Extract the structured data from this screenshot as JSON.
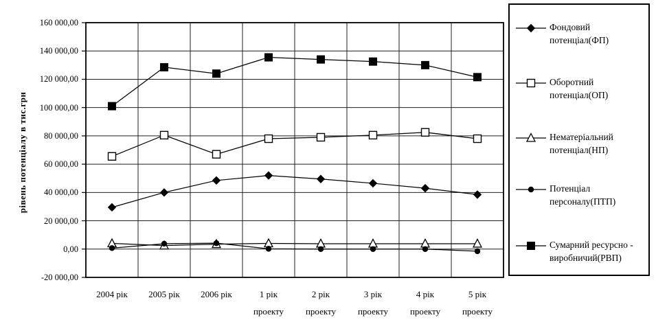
{
  "figure": {
    "background": "#ffffff",
    "line_color": "#000000",
    "grid_color": "#1f1f1f"
  },
  "chart_data": {
    "type": "line",
    "title": "",
    "xlabel": "",
    "ylabel": "рівень потенціалу в тис.грн",
    "ylim": [
      -20000,
      160000
    ],
    "y_tick_step": 20000,
    "grid": true,
    "legend_position": "right",
    "y_ticks": [
      {
        "value": 160000,
        "label": "160 000,00"
      },
      {
        "value": 140000,
        "label": "140 000,00"
      },
      {
        "value": 120000,
        "label": "120 000,00"
      },
      {
        "value": 100000,
        "label": "100 000,00"
      },
      {
        "value": 80000,
        "label": "80 000,00"
      },
      {
        "value": 60000,
        "label": "60 000,00"
      },
      {
        "value": 40000,
        "label": "40 000,00"
      },
      {
        "value": 20000,
        "label": "20 000,00"
      },
      {
        "value": 0,
        "label": "0,00"
      },
      {
        "value": -20000,
        "label": "-20 000,00"
      }
    ],
    "categories": [
      {
        "lines": [
          "2004 рік"
        ]
      },
      {
        "lines": [
          "2005 рік"
        ]
      },
      {
        "lines": [
          "2006 рік"
        ]
      },
      {
        "lines": [
          "1 рік",
          "проекту"
        ]
      },
      {
        "lines": [
          "2 рік",
          "проекту"
        ]
      },
      {
        "lines": [
          "3 рік",
          "проекту"
        ]
      },
      {
        "lines": [
          "4 рік",
          "проекту"
        ]
      },
      {
        "lines": [
          "5 рік",
          "проекту"
        ]
      }
    ],
    "series": [
      {
        "name": "Фондовий потенціал(ФП)",
        "legend_lines": [
          "Фондовий",
          "потенціал(ФП)"
        ],
        "marker": "diamond-filled",
        "values": [
          29500,
          40000,
          48500,
          52000,
          49500,
          46500,
          43000,
          38500
        ]
      },
      {
        "name": "Оборотний потенціал(ОП)",
        "legend_lines": [
          "Оборотний",
          "потенціал(ОП)"
        ],
        "marker": "square-open",
        "values": [
          65500,
          80500,
          67000,
          78000,
          79000,
          80500,
          82500,
          78000
        ]
      },
      {
        "name": "Нематеріальний потенціал(НП)",
        "legend_lines": [
          "Нематеріальний",
          "потенціал(НП)"
        ],
        "marker": "triangle-open",
        "values": [
          4000,
          2500,
          3500,
          4000,
          3800,
          3800,
          3800,
          3800
        ]
      },
      {
        "name": "Потенціал персоналу(ПТП)",
        "legend_lines": [
          "Потенціал",
          "персоналу(ПТП)"
        ],
        "marker": "circle-filled",
        "values": [
          700,
          3800,
          4200,
          200,
          0,
          0,
          0,
          -1500
        ]
      },
      {
        "name": "Сумарний ресурсно - виробничий(РВП)",
        "legend_lines": [
          "Сумарний ресурсно -",
          "виробничий(РВП)"
        ],
        "marker": "square-filled",
        "values": [
          101000,
          128500,
          124000,
          135500,
          134000,
          132500,
          130000,
          121500
        ]
      }
    ]
  }
}
